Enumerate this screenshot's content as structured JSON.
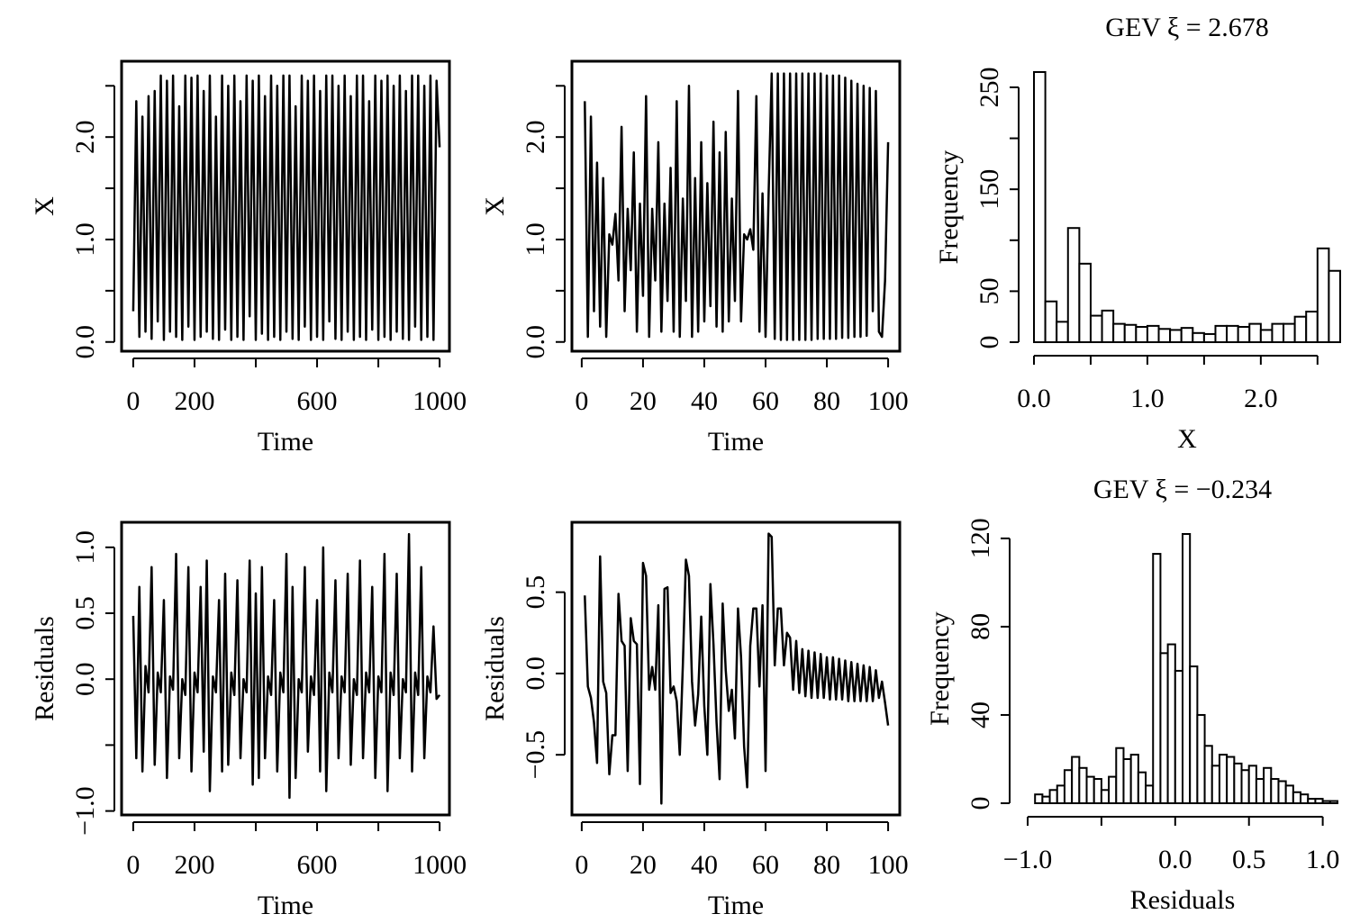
{
  "chart_data": [
    {
      "type": "line",
      "x_label": "Time",
      "y_label": "X",
      "color": "#000000",
      "xlim": [
        -38,
        1032
      ],
      "ylim": [
        -0.09,
        2.74
      ],
      "xticks": [
        0,
        200,
        {
          "value": 400,
          "label": null
        },
        600,
        {
          "value": 800,
          "label": null
        },
        1000
      ],
      "yticks": [
        {
          "value": 0,
          "label": "0.0"
        },
        {
          "value": 0.5,
          "label": null
        },
        {
          "value": 1,
          "label": "1.0"
        },
        {
          "value": 1.5,
          "label": null
        },
        {
          "value": 2,
          "label": "2.0"
        },
        {
          "value": 2.5,
          "label": null
        }
      ],
      "x": [
        0,
        10,
        20,
        30,
        40,
        50,
        60,
        70,
        80,
        90,
        100,
        110,
        120,
        130,
        140,
        150,
        160,
        170,
        180,
        190,
        200,
        210,
        220,
        230,
        240,
        250,
        260,
        270,
        280,
        290,
        300,
        310,
        320,
        330,
        340,
        350,
        360,
        370,
        380,
        390,
        400,
        410,
        420,
        430,
        440,
        450,
        460,
        470,
        480,
        490,
        500,
        510,
        520,
        530,
        540,
        550,
        560,
        570,
        580,
        590,
        600,
        610,
        620,
        630,
        640,
        650,
        660,
        670,
        680,
        690,
        700,
        710,
        720,
        730,
        740,
        750,
        760,
        770,
        780,
        790,
        800,
        810,
        820,
        830,
        840,
        850,
        860,
        870,
        880,
        890,
        900,
        910,
        920,
        930,
        940,
        950,
        960,
        970,
        980,
        990,
        1000
      ],
      "values": [
        0.3,
        2.35,
        0.05,
        2.2,
        0.1,
        2.4,
        0.03,
        2.45,
        0.2,
        2.6,
        0.02,
        2.55,
        0.1,
        2.6,
        0.05,
        2.3,
        0.02,
        2.6,
        0.15,
        2.58,
        0.02,
        2.6,
        0.05,
        2.45,
        0.1,
        2.6,
        0.03,
        2.2,
        0.02,
        2.6,
        0.12,
        2.5,
        0.02,
        2.6,
        0.05,
        2.35,
        0.02,
        2.6,
        0.25,
        2.55,
        0.02,
        2.6,
        0.08,
        2.4,
        0.02,
        2.6,
        0.05,
        2.5,
        0.02,
        2.6,
        0.1,
        2.6,
        0.03,
        2.3,
        0.02,
        2.6,
        0.15,
        2.55,
        0.02,
        2.6,
        0.05,
        2.45,
        0.02,
        2.6,
        0.2,
        2.6,
        0.03,
        2.5,
        0.02,
        2.6,
        0.1,
        2.4,
        0.02,
        2.6,
        0.05,
        2.6,
        0.02,
        2.35,
        0.12,
        2.6,
        0.02,
        2.55,
        0.05,
        2.6,
        0.02,
        2.5,
        0.1,
        2.6,
        0.03,
        2.45,
        0.02,
        2.6,
        0.15,
        2.6,
        0.02,
        2.5,
        0.05,
        2.6,
        0.02,
        2.55,
        1.9
      ]
    },
    {
      "type": "line",
      "x_label": "Time",
      "y_label": "X",
      "color": "#000000",
      "xlim": [
        -3.2,
        103.8
      ],
      "ylim": [
        -0.09,
        2.74
      ],
      "xticks": [
        0,
        20,
        40,
        60,
        80,
        100
      ],
      "yticks": [
        {
          "value": 0,
          "label": "0.0"
        },
        {
          "value": 0.5,
          "label": null
        },
        {
          "value": 1,
          "label": "1.0"
        },
        {
          "value": 1.5,
          "label": null
        },
        {
          "value": 2,
          "label": "2.0"
        },
        {
          "value": 2.5,
          "label": null
        }
      ],
      "x": [
        1,
        2,
        3,
        4,
        5,
        6,
        7,
        8,
        9,
        10,
        11,
        12,
        13,
        14,
        15,
        16,
        17,
        18,
        19,
        20,
        21,
        22,
        23,
        24,
        25,
        26,
        27,
        28,
        29,
        30,
        31,
        32,
        33,
        34,
        35,
        36,
        37,
        38,
        39,
        40,
        41,
        42,
        43,
        44,
        45,
        46,
        47,
        48,
        49,
        50,
        51,
        52,
        53,
        54,
        55,
        56,
        57,
        58,
        59,
        60,
        61,
        62,
        63,
        64,
        65,
        66,
        67,
        68,
        69,
        70,
        71,
        72,
        73,
        74,
        75,
        76,
        77,
        78,
        79,
        80,
        81,
        82,
        83,
        84,
        85,
        86,
        87,
        88,
        89,
        90,
        91,
        92,
        93,
        94,
        95,
        96,
        97,
        98,
        99,
        100
      ],
      "values": [
        2.35,
        0.05,
        2.2,
        0.3,
        1.75,
        0.15,
        1.6,
        0.05,
        1.05,
        0.95,
        1.25,
        0.6,
        2.1,
        0.3,
        1.3,
        0.7,
        1.85,
        0.1,
        1.35,
        0.45,
        2.4,
        0.05,
        1.3,
        0.6,
        1.95,
        0.1,
        1.35,
        0.4,
        1.7,
        0.1,
        2.35,
        0.05,
        1.4,
        0.4,
        2.5,
        0.05,
        1.6,
        0.1,
        1.95,
        0.2,
        1.55,
        0.35,
        2.15,
        0.15,
        1.85,
        0.1,
        2.05,
        0.2,
        1.4,
        0.4,
        2.45,
        0.2,
        1.05,
        1.0,
        1.1,
        0.9,
        2.4,
        0.1,
        1.45,
        0.05,
        1.45,
        2.62,
        0.03,
        2.62,
        0.02,
        2.62,
        0.02,
        2.62,
        0.02,
        2.62,
        0.02,
        2.62,
        0.02,
        2.62,
        0.02,
        2.62,
        0.03,
        2.62,
        0.03,
        2.6,
        0.03,
        2.6,
        0.03,
        2.6,
        0.04,
        2.58,
        0.04,
        2.55,
        0.05,
        2.52,
        0.05,
        2.5,
        0.06,
        2.48,
        0.3,
        2.45,
        0.1,
        0.05,
        0.6,
        1.95
      ]
    },
    {
      "type": "histogram",
      "title": "GEV ξ = 2.678",
      "x_label": "X",
      "y_label": "Frequency",
      "color": "#ffffff",
      "xlim": [
        0,
        2.7
      ],
      "ylim": [
        0,
        265
      ],
      "xticks": [
        {
          "value": 0,
          "label": "0.0"
        },
        {
          "value": 0.5,
          "label": null
        },
        {
          "value": 1,
          "label": "1.0"
        },
        {
          "value": 1.5,
          "label": null
        },
        {
          "value": 2,
          "label": "2.0"
        },
        {
          "value": 2.5,
          "label": null
        }
      ],
      "yticks": [
        0,
        50,
        {
          "value": 100,
          "label": null
        },
        150,
        {
          "value": 200,
          "label": null
        },
        250
      ],
      "bins": [
        0,
        0.1,
        0.2,
        0.3,
        0.4,
        0.5,
        0.6,
        0.7,
        0.8,
        0.9,
        1.0,
        1.1,
        1.2,
        1.3,
        1.4,
        1.5,
        1.6,
        1.7,
        1.8,
        1.9,
        2.0,
        2.1,
        2.2,
        2.3,
        2.4,
        2.5,
        2.6,
        2.7
      ],
      "values": [
        265,
        40,
        20,
        112,
        77,
        26,
        31,
        18,
        17,
        15,
        16,
        13,
        12,
        14,
        9,
        8,
        16,
        16,
        15,
        18,
        12,
        18,
        18,
        25,
        30,
        92,
        70
      ]
    },
    {
      "type": "line",
      "x_label": "Time",
      "y_label": "Residuals",
      "color": "#000000",
      "xlim": [
        -38,
        1032
      ],
      "ylim": [
        -1.03,
        1.19
      ],
      "xticks": [
        0,
        200,
        {
          "value": 400,
          "label": null
        },
        600,
        {
          "value": 800,
          "label": null
        },
        1000
      ],
      "yticks": [
        {
          "value": -1,
          "label": "−1.0"
        },
        {
          "value": -0.5,
          "label": null
        },
        {
          "value": 0,
          "label": "0.0"
        },
        {
          "value": 0.5,
          "label": "0.5"
        },
        {
          "value": 1,
          "label": "1.0"
        }
      ],
      "x": [
        0,
        10,
        20,
        30,
        40,
        50,
        60,
        70,
        80,
        90,
        100,
        110,
        120,
        130,
        140,
        150,
        160,
        170,
        180,
        190,
        200,
        210,
        220,
        230,
        240,
        250,
        260,
        270,
        280,
        290,
        300,
        310,
        320,
        330,
        340,
        350,
        360,
        370,
        380,
        390,
        400,
        410,
        420,
        430,
        440,
        450,
        460,
        470,
        480,
        490,
        500,
        510,
        520,
        530,
        540,
        550,
        560,
        570,
        580,
        590,
        600,
        610,
        620,
        630,
        640,
        650,
        660,
        670,
        680,
        690,
        700,
        710,
        720,
        730,
        740,
        750,
        760,
        770,
        780,
        790,
        800,
        810,
        820,
        830,
        840,
        850,
        860,
        870,
        880,
        890,
        900,
        910,
        920,
        930,
        940,
        950,
        960,
        970,
        980,
        990,
        1000
      ],
      "values": [
        0.48,
        -0.6,
        0.7,
        -0.7,
        0.1,
        -0.1,
        0.85,
        -0.65,
        0.05,
        -0.1,
        0.6,
        -0.75,
        0.02,
        -0.08,
        0.95,
        -0.6,
        0.0,
        -0.12,
        0.85,
        -0.7,
        0.05,
        -0.1,
        0.7,
        -0.55,
        0.9,
        -0.85,
        0.02,
        -0.1,
        0.6,
        -0.7,
        0.8,
        -0.65,
        0.05,
        -0.12,
        0.75,
        -0.6,
        0.0,
        -0.1,
        0.9,
        -0.8,
        0.65,
        -0.75,
        0.85,
        -0.6,
        0.02,
        -0.12,
        0.6,
        -0.7,
        0.05,
        -0.1,
        0.95,
        -0.9,
        0.7,
        -0.75,
        0.0,
        -0.1,
        0.85,
        -0.55,
        0.02,
        -0.12,
        0.6,
        -0.7,
        1.0,
        -0.85,
        0.05,
        -0.1,
        0.75,
        -0.6,
        0.02,
        -0.1,
        0.8,
        -0.65,
        0.0,
        -0.12,
        0.9,
        -0.6,
        0.05,
        -0.1,
        0.7,
        -0.75,
        0.02,
        -0.1,
        0.95,
        -0.85,
        0.05,
        -0.12,
        0.8,
        -0.6,
        0.0,
        -0.1,
        1.1,
        -0.7,
        0.05,
        -0.12,
        0.85,
        -0.6,
        0.02,
        -0.1,
        0.4,
        -0.15,
        -0.12
      ]
    },
    {
      "type": "line",
      "x_label": "Time",
      "y_label": "Residuals",
      "color": "#000000",
      "xlim": [
        -3.2,
        103.8
      ],
      "ylim": [
        -0.87,
        0.93
      ],
      "xticks": [
        0,
        20,
        40,
        60,
        80,
        100
      ],
      "yticks": [
        {
          "value": -0.5,
          "label": "−0.5"
        },
        {
          "value": 0,
          "label": "0.0"
        },
        {
          "value": 0.5,
          "label": "0.5"
        }
      ],
      "x": [
        1,
        2,
        3,
        4,
        5,
        6,
        7,
        8,
        9,
        10,
        11,
        12,
        13,
        14,
        15,
        16,
        17,
        18,
        19,
        20,
        21,
        22,
        23,
        24,
        25,
        26,
        27,
        28,
        29,
        30,
        31,
        32,
        33,
        34,
        35,
        36,
        37,
        38,
        39,
        40,
        41,
        42,
        43,
        44,
        45,
        46,
        47,
        48,
        49,
        50,
        51,
        52,
        53,
        54,
        55,
        56,
        57,
        58,
        59,
        60,
        61,
        62,
        63,
        64,
        65,
        66,
        67,
        68,
        69,
        70,
        71,
        72,
        73,
        74,
        75,
        76,
        77,
        78,
        79,
        80,
        81,
        82,
        83,
        84,
        85,
        86,
        87,
        88,
        89,
        90,
        91,
        92,
        93,
        94,
        95,
        96,
        97,
        98,
        99,
        100
      ],
      "values": [
        0.48,
        -0.08,
        -0.15,
        -0.3,
        -0.55,
        0.72,
        -0.05,
        -0.12,
        -0.62,
        -0.38,
        -0.38,
        0.49,
        0.2,
        0.17,
        -0.6,
        0.34,
        0.2,
        0.18,
        -0.68,
        0.68,
        0.6,
        -0.1,
        0.04,
        -0.1,
        0.42,
        -0.8,
        0.52,
        0.53,
        -0.12,
        -0.08,
        -0.17,
        -0.5,
        0.05,
        0.7,
        0.6,
        -0.05,
        -0.32,
        -0.13,
        0.35,
        -0.2,
        -0.5,
        0.55,
        0.18,
        -0.3,
        -0.65,
        0.43,
        0.02,
        -0.23,
        -0.1,
        -0.4,
        0.4,
        0.1,
        -0.45,
        -0.7,
        0.17,
        0.4,
        0.4,
        -0.08,
        0.42,
        -0.6,
        0.86,
        0.84,
        0.05,
        0.4,
        0.4,
        0.05,
        0.25,
        0.22,
        -0.1,
        0.2,
        -0.12,
        0.15,
        -0.14,
        0.14,
        -0.15,
        0.13,
        -0.15,
        0.12,
        -0.15,
        0.1,
        -0.16,
        0.1,
        -0.16,
        0.09,
        -0.16,
        0.08,
        -0.17,
        0.07,
        -0.17,
        0.06,
        -0.17,
        0.05,
        -0.17,
        0.04,
        -0.17,
        0.02,
        -0.15,
        -0.05,
        -0.18,
        -0.32
      ]
    },
    {
      "type": "histogram",
      "title": "GEV ξ = −0.234",
      "x_label": "Residuals",
      "y_label": "Frequency",
      "color": "#ffffff",
      "xlim": [
        -1.0,
        1.1
      ],
      "ylim": [
        0,
        122
      ],
      "xticks": [
        {
          "value": -1,
          "label": "−1.0"
        },
        {
          "value": -0.5,
          "label": null
        },
        {
          "value": 0,
          "label": "0.0"
        },
        {
          "value": 0.5,
          "label": "0.5"
        },
        {
          "value": 1,
          "label": "1.0"
        }
      ],
      "yticks": [
        0,
        40,
        80,
        120
      ],
      "bins": [
        -0.95,
        -0.9,
        -0.85,
        -0.8,
        -0.75,
        -0.7,
        -0.65,
        -0.6,
        -0.55,
        -0.5,
        -0.45,
        -0.4,
        -0.35,
        -0.3,
        -0.25,
        -0.2,
        -0.15,
        -0.1,
        -0.05,
        0,
        0.05,
        0.1,
        0.15,
        0.2,
        0.25,
        0.3,
        0.35,
        0.4,
        0.45,
        0.5,
        0.55,
        0.6,
        0.65,
        0.7,
        0.75,
        0.8,
        0.85,
        0.9,
        0.95,
        1.0,
        1.05,
        1.1
      ],
      "values": [
        4,
        3,
        6,
        8,
        15,
        21,
        16,
        12,
        11,
        6,
        12,
        25,
        20,
        22,
        14,
        8,
        113,
        68,
        72,
        60,
        122,
        62,
        40,
        26,
        17,
        22,
        21,
        18,
        15,
        17,
        11,
        16,
        11,
        10,
        8,
        5,
        4,
        2,
        2,
        1,
        1
      ]
    }
  ]
}
